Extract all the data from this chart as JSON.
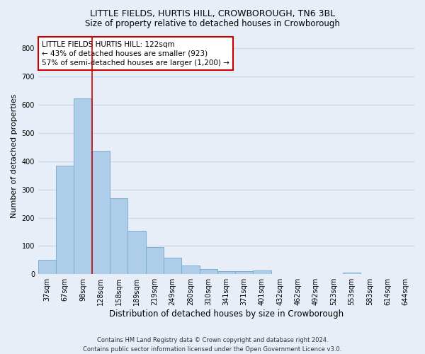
{
  "title": "LITTLE FIELDS, HURTIS HILL, CROWBOROUGH, TN6 3BL",
  "subtitle": "Size of property relative to detached houses in Crowborough",
  "xlabel": "Distribution of detached houses by size in Crowborough",
  "ylabel": "Number of detached properties",
  "categories": [
    "37sqm",
    "67sqm",
    "98sqm",
    "128sqm",
    "158sqm",
    "189sqm",
    "219sqm",
    "249sqm",
    "280sqm",
    "310sqm",
    "341sqm",
    "371sqm",
    "401sqm",
    "432sqm",
    "462sqm",
    "492sqm",
    "523sqm",
    "553sqm",
    "583sqm",
    "614sqm",
    "644sqm"
  ],
  "values": [
    50,
    385,
    623,
    438,
    268,
    153,
    95,
    57,
    30,
    17,
    10,
    10,
    12,
    0,
    0,
    0,
    0,
    5,
    0,
    0,
    0
  ],
  "bar_color": "#aecde8",
  "bar_edge_color": "#7aafd4",
  "grid_color": "#c8d8ea",
  "bg_color": "#e8eef8",
  "axes_bg_color": "#e8eef8",
  "redline_x": 2.5,
  "annotation_text": "LITTLE FIELDS HURTIS HILL: 122sqm\n← 43% of detached houses are smaller (923)\n57% of semi-detached houses are larger (1,200) →",
  "annotation_box_color": "#ffffff",
  "annotation_box_edge": "#cc0000",
  "ylim": [
    0,
    840
  ],
  "yticks": [
    0,
    100,
    200,
    300,
    400,
    500,
    600,
    700,
    800
  ],
  "footer": "Contains HM Land Registry data © Crown copyright and database right 2024.\nContains public sector information licensed under the Open Government Licence v3.0.",
  "title_fontsize": 9,
  "subtitle_fontsize": 8.5,
  "xlabel_fontsize": 8.5,
  "ylabel_fontsize": 8,
  "tick_fontsize": 7,
  "annotation_fontsize": 7.5,
  "footer_fontsize": 6
}
